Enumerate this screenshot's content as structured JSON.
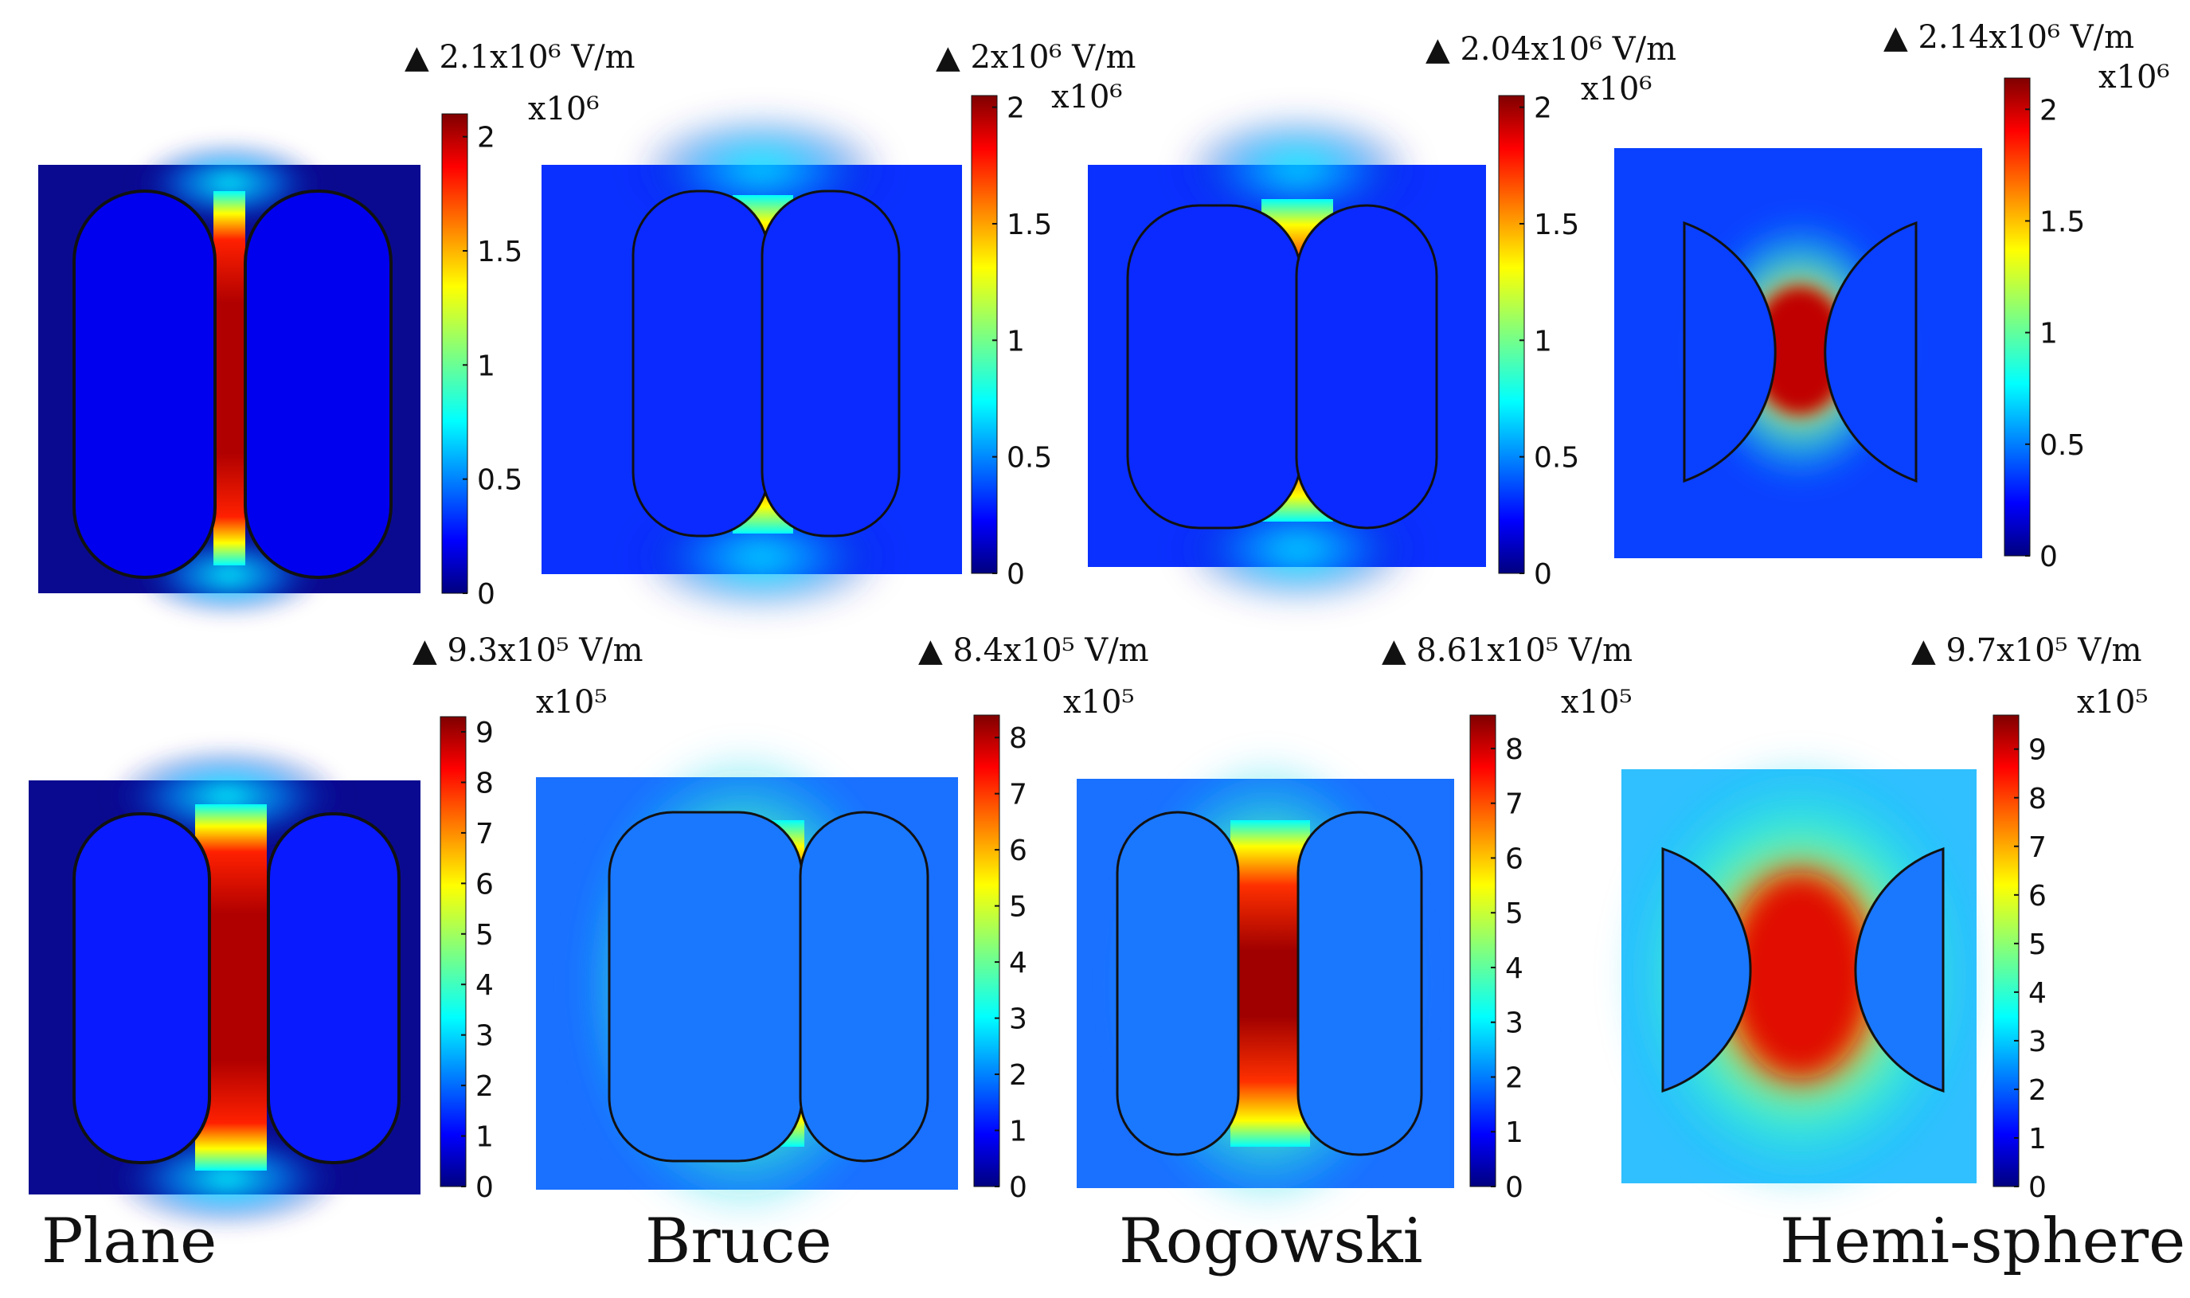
{
  "panels": [
    {
      "id": "plane-top",
      "shape": "plane",
      "max_label": "2.1x10⁶ V/m",
      "multiplier": "x10⁶",
      "ticks": [
        "0",
        "0.5",
        "1",
        "1.5",
        "2"
      ],
      "tick_values": [
        0,
        0.5,
        1,
        1.5,
        2
      ],
      "scale_max": 2.1,
      "background": "dark"
    },
    {
      "id": "bruce-top",
      "shape": "bruce",
      "max_label": "2x10⁶ V/m",
      "multiplier": "x10⁶",
      "ticks": [
        "0",
        "0.5",
        "1",
        "1.5",
        "2"
      ],
      "tick_values": [
        0,
        0.5,
        1,
        1.5,
        2
      ],
      "scale_max": 2.05,
      "background": "mid"
    },
    {
      "id": "rogowski-top",
      "shape": "rogowski",
      "max_label": "2.04x10⁶ V/m",
      "multiplier": "x10⁶",
      "ticks": [
        "0",
        "0.5",
        "1",
        "1.5",
        "2"
      ],
      "tick_values": [
        0,
        0.5,
        1,
        1.5,
        2
      ],
      "scale_max": 2.05,
      "background": "mid"
    },
    {
      "id": "hemisphere-top",
      "shape": "hemisphere",
      "max_label": "2.14x10⁶ V/m",
      "multiplier": "x10⁶",
      "ticks": [
        "0",
        "0.5",
        "1",
        "1.5",
        "2"
      ],
      "tick_values": [
        0,
        0.5,
        1,
        1.5,
        2
      ],
      "scale_max": 2.14,
      "background": "mid"
    },
    {
      "id": "plane-bottom",
      "shape": "plane",
      "max_label": "9.3x10⁵ V/m",
      "multiplier": "x10⁵",
      "ticks": [
        "0",
        "1",
        "2",
        "3",
        "4",
        "5",
        "6",
        "7",
        "8",
        "9"
      ],
      "tick_values": [
        0,
        1,
        2,
        3,
        4,
        5,
        6,
        7,
        8,
        9
      ],
      "scale_max": 9.3,
      "background": "dark"
    },
    {
      "id": "bruce-bottom",
      "shape": "bruce",
      "max_label": "8.4x10⁵ V/m",
      "multiplier": "x10⁵",
      "ticks": [
        "0",
        "1",
        "2",
        "3",
        "4",
        "5",
        "6",
        "7",
        "8"
      ],
      "tick_values": [
        0,
        1,
        2,
        3,
        4,
        5,
        6,
        7,
        8
      ],
      "scale_max": 8.4,
      "background": "light"
    },
    {
      "id": "rogowski-bottom",
      "shape": "rogowski",
      "max_label": "8.61x10⁵ V/m",
      "multiplier": "x10⁵",
      "ticks": [
        "0",
        "1",
        "2",
        "3",
        "4",
        "5",
        "6",
        "7",
        "8"
      ],
      "tick_values": [
        0,
        1,
        2,
        3,
        4,
        5,
        6,
        7,
        8
      ],
      "scale_max": 8.61,
      "background": "light"
    },
    {
      "id": "hemisphere-bottom",
      "shape": "hemisphere",
      "max_label": "9.7x10⁵ V/m",
      "multiplier": "x10⁵",
      "ticks": [
        "0",
        "1",
        "2",
        "3",
        "4",
        "5",
        "6",
        "7",
        "8",
        "9"
      ],
      "tick_values": [
        0,
        1,
        2,
        3,
        4,
        5,
        6,
        7,
        8,
        9
      ],
      "scale_max": 9.7,
      "background": "light"
    }
  ],
  "captions": [
    "Plane",
    "Bruce",
    "Rogowski",
    "Hemi-sphere"
  ],
  "colors": {
    "jet": [
      "#00007f",
      "#0000ff",
      "#007fff",
      "#00ffff",
      "#7fff7f",
      "#ffff00",
      "#ff7f00",
      "#ff0000",
      "#7f0000"
    ],
    "outline": "#111111"
  }
}
